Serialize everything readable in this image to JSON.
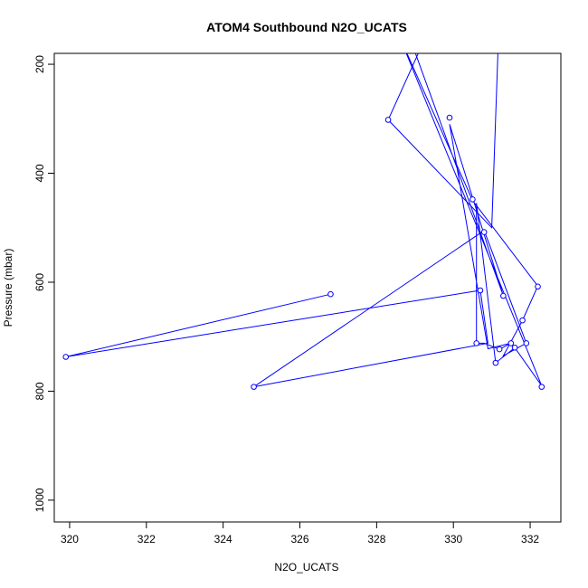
{
  "chart_data": {
    "type": "line",
    "title": "ATOM4 Southbound N2O_UCATS",
    "xlabel": "N2O_UCATS",
    "ylabel": "Pressure (mbar)",
    "xlim": [
      319.6,
      332.8
    ],
    "ylim": [
      1040,
      180
    ],
    "y_reversed": true,
    "x_ticks": [
      320,
      322,
      324,
      326,
      328,
      330,
      332
    ],
    "y_ticks": [
      200,
      400,
      600,
      800,
      1000
    ],
    "grid": false,
    "legend": "none",
    "line_color": "#0000ff",
    "series": [
      {
        "points": [
          [
            328.6,
            100
          ],
          [
            331.3,
            625
          ],
          [
            329.9,
            310
          ],
          [
            330.9,
            722
          ],
          [
            331.5,
            712
          ],
          [
            331.2,
            723
          ],
          [
            330.8,
            712
          ],
          [
            330.6,
            712
          ],
          [
            330.6,
            455
          ],
          [
            331.1,
            748
          ],
          [
            331.6,
            720
          ],
          [
            332.3,
            790
          ],
          [
            328.6,
            150
          ],
          [
            330.5,
            450
          ],
          [
            332.2,
            607
          ],
          [
            331.8,
            670
          ],
          [
            331.3,
            735
          ],
          [
            331.9,
            712
          ],
          [
            330.8,
            505
          ],
          [
            324.8,
            792
          ],
          [
            330.9,
            712
          ],
          [
            330.7,
            615
          ],
          [
            319.9,
            737
          ],
          [
            326.8,
            622
          ]
        ]
      },
      {
        "points": [
          [
            328.3,
            302
          ],
          [
            329.6,
            100
          ]
        ]
      },
      {
        "points": [
          [
            328.3,
            302
          ],
          [
            331.0,
            500
          ],
          [
            331.2,
            100
          ]
        ]
      }
    ],
    "markers": [
      [
        328.3,
        302
      ],
      [
        329.9,
        298
      ],
      [
        330.5,
        448
      ],
      [
        330.8,
        508
      ],
      [
        332.2,
        608
      ],
      [
        330.7,
        615
      ],
      [
        326.8,
        622
      ],
      [
        331.3,
        625
      ],
      [
        331.8,
        670
      ],
      [
        330.6,
        712
      ],
      [
        331.5,
        712
      ],
      [
        331.9,
        712
      ],
      [
        331.6,
        720
      ],
      [
        331.2,
        723
      ],
      [
        319.9,
        737
      ],
      [
        331.1,
        748
      ],
      [
        324.8,
        792
      ],
      [
        332.3,
        792
      ]
    ]
  }
}
